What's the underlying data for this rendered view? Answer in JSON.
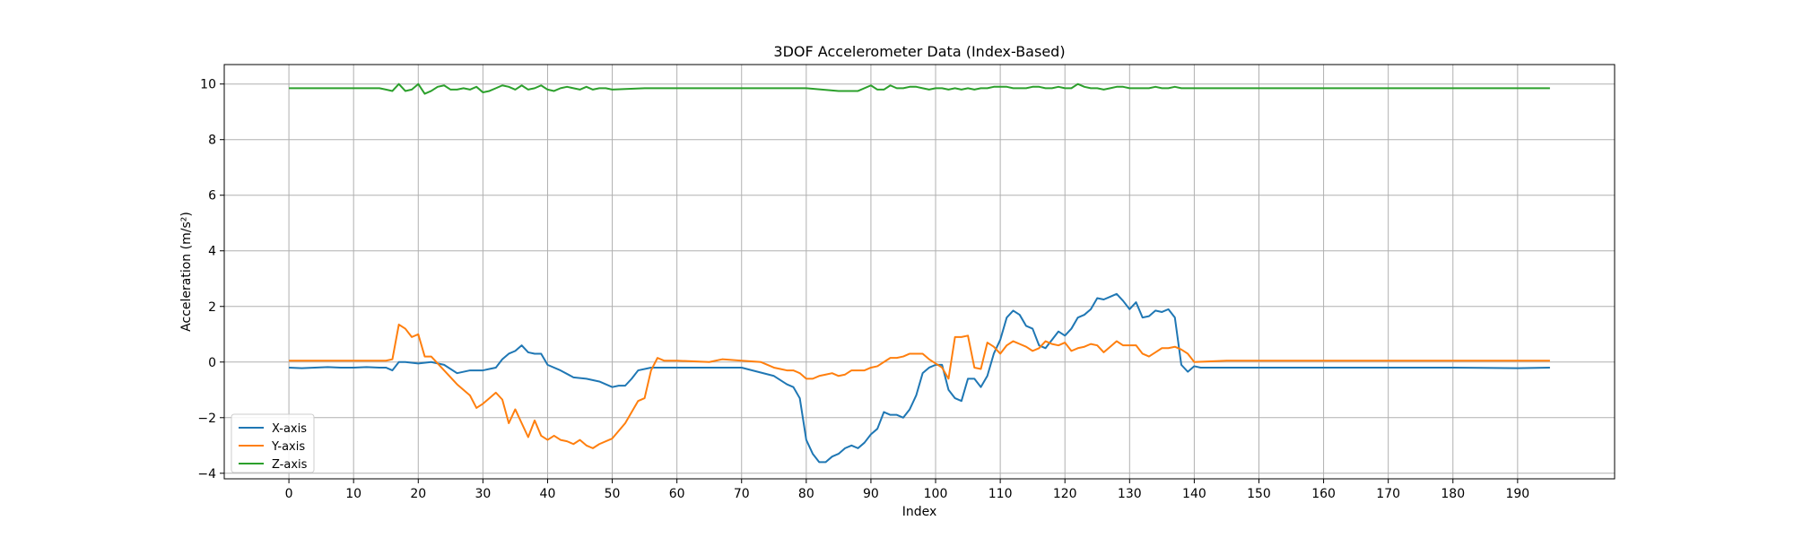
{
  "chart_data": {
    "type": "line",
    "title": "3DOF Accelerometer Data (Index-Based)",
    "xlabel": "Index",
    "ylabel": "Acceleration (m/s²)",
    "xlim": [
      -10,
      205
    ],
    "ylim": [
      -4.2,
      10.7
    ],
    "xticks": [
      0,
      10,
      20,
      30,
      40,
      50,
      60,
      70,
      80,
      90,
      100,
      110,
      120,
      130,
      140,
      150,
      160,
      170,
      180,
      190
    ],
    "yticks": [
      -4,
      -2,
      0,
      2,
      4,
      6,
      8,
      10
    ],
    "grid": true,
    "legend_position": "lower-left",
    "series": [
      {
        "name": "X-axis",
        "color": "#1f77b4",
        "x": [
          0,
          2,
          4,
          6,
          8,
          10,
          12,
          14,
          15,
          16,
          17,
          18,
          20,
          22,
          24,
          26,
          28,
          30,
          31,
          32,
          33,
          34,
          35,
          36,
          37,
          38,
          39,
          40,
          42,
          44,
          46,
          48,
          50,
          51,
          52,
          53,
          54,
          56,
          60,
          70,
          75,
          77,
          78,
          79,
          80,
          81,
          82,
          83,
          84,
          85,
          86,
          87,
          88,
          89,
          90,
          91,
          92,
          93,
          94,
          95,
          96,
          97,
          98,
          99,
          100,
          101,
          102,
          103,
          104,
          105,
          106,
          107,
          108,
          109,
          110,
          111,
          112,
          113,
          114,
          115,
          116,
          117,
          118,
          119,
          120,
          121,
          122,
          123,
          124,
          125,
          126,
          127,
          128,
          129,
          130,
          131,
          132,
          133,
          134,
          135,
          136,
          137,
          138,
          139,
          140,
          141,
          145,
          150,
          160,
          170,
          180,
          190,
          195
        ],
        "y": [
          -0.2,
          -0.22,
          -0.2,
          -0.18,
          -0.2,
          -0.2,
          -0.18,
          -0.2,
          -0.2,
          -0.3,
          0.0,
          0.0,
          -0.05,
          0.0,
          -0.1,
          -0.4,
          -0.3,
          -0.3,
          -0.25,
          -0.2,
          0.1,
          0.3,
          0.4,
          0.6,
          0.35,
          0.3,
          0.3,
          -0.1,
          -0.3,
          -0.55,
          -0.6,
          -0.7,
          -0.9,
          -0.85,
          -0.85,
          -0.6,
          -0.3,
          -0.2,
          -0.2,
          -0.2,
          -0.5,
          -0.8,
          -0.9,
          -1.3,
          -2.8,
          -3.3,
          -3.6,
          -3.6,
          -3.4,
          -3.3,
          -3.1,
          -3.0,
          -3.1,
          -2.9,
          -2.6,
          -2.4,
          -1.8,
          -1.9,
          -1.9,
          -2.0,
          -1.7,
          -1.2,
          -0.4,
          -0.2,
          -0.1,
          -0.1,
          -1.0,
          -1.3,
          -1.4,
          -0.6,
          -0.6,
          -0.9,
          -0.5,
          0.3,
          0.8,
          1.6,
          1.85,
          1.7,
          1.3,
          1.2,
          0.6,
          0.5,
          0.8,
          1.1,
          0.95,
          1.2,
          1.6,
          1.7,
          1.9,
          2.3,
          2.25,
          2.35,
          2.45,
          2.2,
          1.9,
          2.15,
          1.6,
          1.65,
          1.85,
          1.8,
          1.9,
          1.6,
          -0.1,
          -0.35,
          -0.15,
          -0.2,
          -0.2,
          -0.2,
          -0.2,
          -0.2,
          -0.2,
          -0.22,
          -0.2
        ]
      },
      {
        "name": "Y-axis",
        "color": "#ff7f0e",
        "x": [
          0,
          5,
          10,
          12,
          14,
          15,
          16,
          17,
          18,
          19,
          20,
          21,
          22,
          24,
          26,
          28,
          29,
          30,
          31,
          32,
          33,
          34,
          35,
          36,
          37,
          38,
          39,
          40,
          41,
          42,
          43,
          44,
          45,
          46,
          47,
          48,
          50,
          52,
          54,
          55,
          56,
          57,
          58,
          60,
          65,
          67,
          70,
          73,
          75,
          76,
          77,
          78,
          79,
          80,
          81,
          82,
          83,
          84,
          85,
          86,
          87,
          88,
          89,
          90,
          91,
          92,
          93,
          94,
          95,
          96,
          97,
          98,
          99,
          100,
          101,
          102,
          103,
          104,
          105,
          106,
          107,
          108,
          109,
          110,
          111,
          112,
          113,
          114,
          115,
          116,
          117,
          118,
          119,
          120,
          121,
          122,
          123,
          124,
          125,
          126,
          127,
          128,
          129,
          130,
          131,
          132,
          133,
          134,
          135,
          136,
          137,
          138,
          139,
          140,
          145,
          150,
          160,
          170,
          180,
          190,
          195
        ],
        "y": [
          0.05,
          0.05,
          0.05,
          0.05,
          0.05,
          0.05,
          0.1,
          1.35,
          1.2,
          0.9,
          1.0,
          0.2,
          0.2,
          -0.3,
          -0.8,
          -1.2,
          -1.65,
          -1.5,
          -1.3,
          -1.1,
          -1.35,
          -2.2,
          -1.7,
          -2.2,
          -2.7,
          -2.1,
          -2.65,
          -2.8,
          -2.65,
          -2.8,
          -2.85,
          -2.95,
          -2.8,
          -3.0,
          -3.1,
          -2.95,
          -2.75,
          -2.2,
          -1.4,
          -1.3,
          -0.3,
          0.15,
          0.05,
          0.05,
          0.0,
          0.1,
          0.05,
          0.0,
          -0.2,
          -0.25,
          -0.3,
          -0.3,
          -0.4,
          -0.6,
          -0.6,
          -0.5,
          -0.45,
          -0.4,
          -0.5,
          -0.45,
          -0.3,
          -0.3,
          -0.3,
          -0.2,
          -0.15,
          0.0,
          0.15,
          0.15,
          0.2,
          0.3,
          0.3,
          0.3,
          0.1,
          -0.05,
          -0.2,
          -0.6,
          0.9,
          0.9,
          0.95,
          -0.2,
          -0.25,
          0.7,
          0.55,
          0.3,
          0.6,
          0.75,
          0.65,
          0.55,
          0.4,
          0.5,
          0.75,
          0.65,
          0.6,
          0.7,
          0.4,
          0.5,
          0.55,
          0.65,
          0.6,
          0.35,
          0.55,
          0.75,
          0.6,
          0.6,
          0.6,
          0.3,
          0.2,
          0.35,
          0.5,
          0.5,
          0.55,
          0.45,
          0.3,
          0.0,
          0.05,
          0.05,
          0.05,
          0.05,
          0.05,
          0.05,
          0.05
        ]
      },
      {
        "name": "Z-axis",
        "color": "#2ca02c",
        "x": [
          0,
          5,
          10,
          14,
          15,
          16,
          17,
          18,
          19,
          20,
          21,
          22,
          23,
          24,
          25,
          26,
          27,
          28,
          29,
          30,
          31,
          32,
          33,
          34,
          35,
          36,
          37,
          38,
          39,
          40,
          41,
          42,
          43,
          44,
          45,
          46,
          47,
          48,
          49,
          50,
          55,
          60,
          65,
          70,
          75,
          80,
          85,
          88,
          90,
          91,
          92,
          93,
          94,
          95,
          96,
          97,
          98,
          99,
          100,
          101,
          102,
          103,
          104,
          105,
          106,
          107,
          108,
          109,
          110,
          111,
          112,
          113,
          114,
          115,
          116,
          117,
          118,
          119,
          120,
          121,
          122,
          123,
          124,
          125,
          126,
          127,
          128,
          129,
          130,
          131,
          132,
          133,
          134,
          135,
          136,
          137,
          138,
          140,
          145,
          150,
          160,
          170,
          180,
          190,
          195
        ],
        "y": [
          9.85,
          9.85,
          9.85,
          9.85,
          9.8,
          9.75,
          10.0,
          9.75,
          9.8,
          10.0,
          9.65,
          9.75,
          9.9,
          9.95,
          9.8,
          9.8,
          9.85,
          9.8,
          9.9,
          9.7,
          9.75,
          9.85,
          9.95,
          9.9,
          9.8,
          9.95,
          9.8,
          9.85,
          9.95,
          9.8,
          9.75,
          9.85,
          9.9,
          9.85,
          9.8,
          9.9,
          9.8,
          9.85,
          9.85,
          9.8,
          9.85,
          9.85,
          9.85,
          9.85,
          9.85,
          9.85,
          9.75,
          9.75,
          9.95,
          9.8,
          9.8,
          9.95,
          9.85,
          9.85,
          9.9,
          9.9,
          9.85,
          9.8,
          9.85,
          9.85,
          9.8,
          9.85,
          9.8,
          9.85,
          9.8,
          9.85,
          9.85,
          9.9,
          9.9,
          9.9,
          9.85,
          9.85,
          9.85,
          9.9,
          9.9,
          9.85,
          9.85,
          9.9,
          9.85,
          9.85,
          10.0,
          9.9,
          9.85,
          9.85,
          9.8,
          9.85,
          9.9,
          9.9,
          9.85,
          9.85,
          9.85,
          9.85,
          9.9,
          9.85,
          9.85,
          9.9,
          9.85,
          9.85,
          9.85,
          9.85,
          9.85,
          9.85,
          9.85,
          9.85,
          9.85
        ]
      }
    ]
  }
}
